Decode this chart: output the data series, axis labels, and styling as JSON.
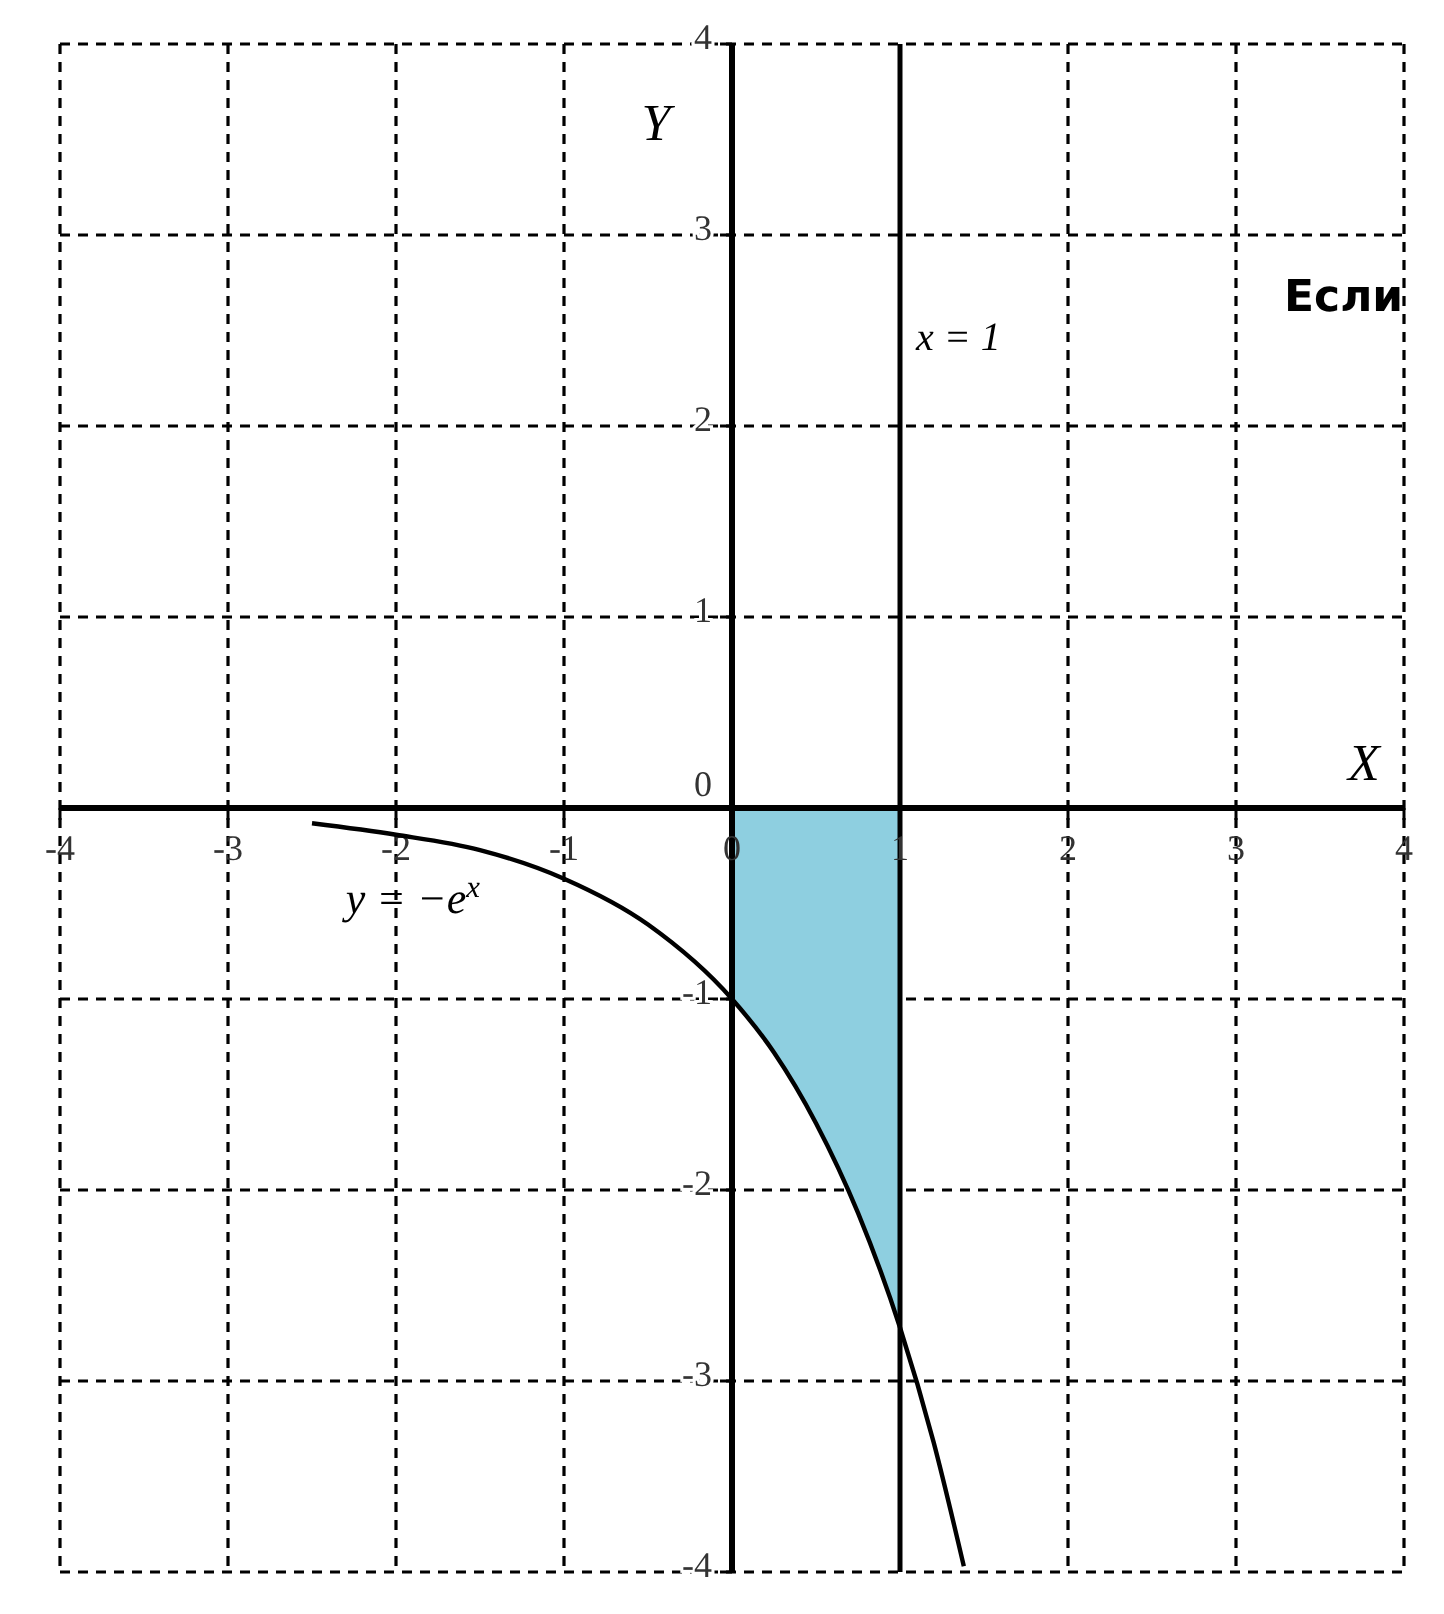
{
  "chart_data": {
    "type": "line",
    "xlabel": "X",
    "ylabel": "Y",
    "xlim": [
      -4,
      4
    ],
    "ylim": [
      -4,
      4
    ],
    "xticks": [
      -4,
      -3,
      -2,
      -1,
      0,
      1,
      2,
      3,
      4
    ],
    "yticks": [
      -4,
      -3,
      -2,
      -1,
      0,
      1,
      2,
      3,
      4
    ],
    "grid": true,
    "series": [
      {
        "type": "area",
        "color": "#8ecfe0",
        "x": [
          0,
          0.25,
          0.5,
          0.75,
          1
        ],
        "values": [
          -1,
          -1.28,
          -1.65,
          -2.12,
          -2.72
        ]
      },
      {
        "color": "#000000",
        "x": [
          -2.5,
          -2,
          -1.5,
          -1,
          -0.5,
          0,
          0.25,
          0.5,
          0.75,
          1,
          1.2,
          1.38
        ],
        "values": [
          -0.08,
          -0.14,
          -0.22,
          -0.37,
          -0.61,
          -1,
          -1.28,
          -1.65,
          -2.12,
          -2.72,
          -3.32,
          -3.97
        ]
      }
    ],
    "ref_lines": [
      {
        "axis": "x",
        "value": 1,
        "label": "x = 1",
        "color": "#000000"
      }
    ],
    "annotations": [
      "y = −e$^{x}$",
      "Если"
    ]
  }
}
